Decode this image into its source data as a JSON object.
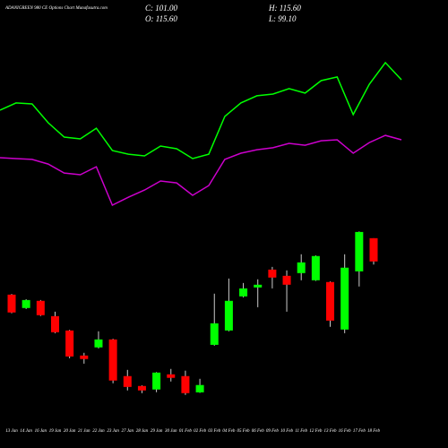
{
  "chart_data": {
    "type": "candlestick",
    "title": "ADANIGREEN 980 CE Options Chart Munafasutra.com",
    "info": [
      "C: 101.00",
      "H: 115.60",
      "O: 115.60",
      "L: 99.10"
    ],
    "categories": [
      "13 Jan",
      "14 Jan",
      "16 Jan",
      "19 Jan",
      "20 Jan",
      "21 Jan",
      "22 Jan",
      "23 Jan",
      "27 Jan",
      "28 Jan",
      "29 Jan",
      "30 Jan",
      "01 Feb",
      "02 Feb",
      "03 Feb",
      "04 Feb",
      "05 Feb",
      "06 Feb",
      "09 Feb",
      "10 Feb",
      "11 Feb",
      "12 Feb",
      "13 Feb",
      "16 Feb",
      "17 Feb",
      "18 Feb"
    ],
    "open": [
      80.2,
      71.8,
      76.3,
      66.7,
      57.7,
      42.0,
      47.1,
      52.1,
      29.1,
      22.9,
      20.7,
      30.2,
      29.1,
      18.9,
      48.7,
      57.7,
      79.1,
      84.7,
      95.9,
      92.0,
      93.7,
      89.2,
      88.1,
      58.3,
      94.8,
      115.6
    ],
    "high": [
      80.6,
      77.3,
      76.8,
      69.5,
      58.1,
      43.7,
      57.2,
      52.5,
      33.0,
      23.3,
      31.6,
      33.6,
      32.5,
      27.4,
      80.8,
      90.3,
      87.5,
      89.8,
      97.6,
      95.4,
      105.5,
      104.8,
      88.5,
      105.5,
      119.8,
      115.6
    ],
    "low": [
      68.5,
      71.2,
      66.8,
      56.0,
      40.3,
      36.9,
      46.5,
      24.6,
      20.1,
      18.4,
      19.0,
      25.7,
      17.3,
      18.6,
      48.2,
      57.2,
      78.5,
      72.3,
      84.1,
      69.5,
      89.2,
      88.8,
      60.0,
      56.0,
      85.3,
      99.1
    ],
    "close": [
      69.0,
      76.8,
      67.3,
      56.6,
      41.4,
      39.8,
      52.1,
      26.3,
      22.3,
      20.1,
      31.3,
      28.0,
      18.4,
      23.5,
      62.2,
      76.3,
      84.1,
      86.4,
      90.9,
      86.4,
      100.4,
      104.4,
      63.9,
      97.1,
      119.5,
      101.0
    ],
    "up_color": "#00ff00",
    "down_color": "#ff0000",
    "lines": [
      {
        "color": "#00ff00",
        "values": [
          195.9,
          200.4,
          199.8,
          188.0,
          179.0,
          177.9,
          184.6,
          170.6,
          168.3,
          167.2,
          173.4,
          171.7,
          165.5,
          168.3,
          192.0,
          200.4,
          204.9,
          206.0,
          209.4,
          206.6,
          214.4,
          216.7,
          193.1,
          212.2,
          225.7,
          215.0
        ]
      },
      {
        "color": "#cc00cc",
        "values": [
          166.1,
          165.5,
          165.0,
          162.1,
          156.5,
          155.4,
          160.4,
          136.3,
          141.3,
          145.8,
          151.5,
          150.3,
          142.5,
          148.6,
          165.0,
          168.9,
          171.1,
          172.3,
          175.1,
          173.9,
          176.7,
          177.3,
          168.9,
          175.6,
          180.1,
          177.3
        ]
      }
    ],
    "ylim": [
      -16,
      265
    ]
  }
}
